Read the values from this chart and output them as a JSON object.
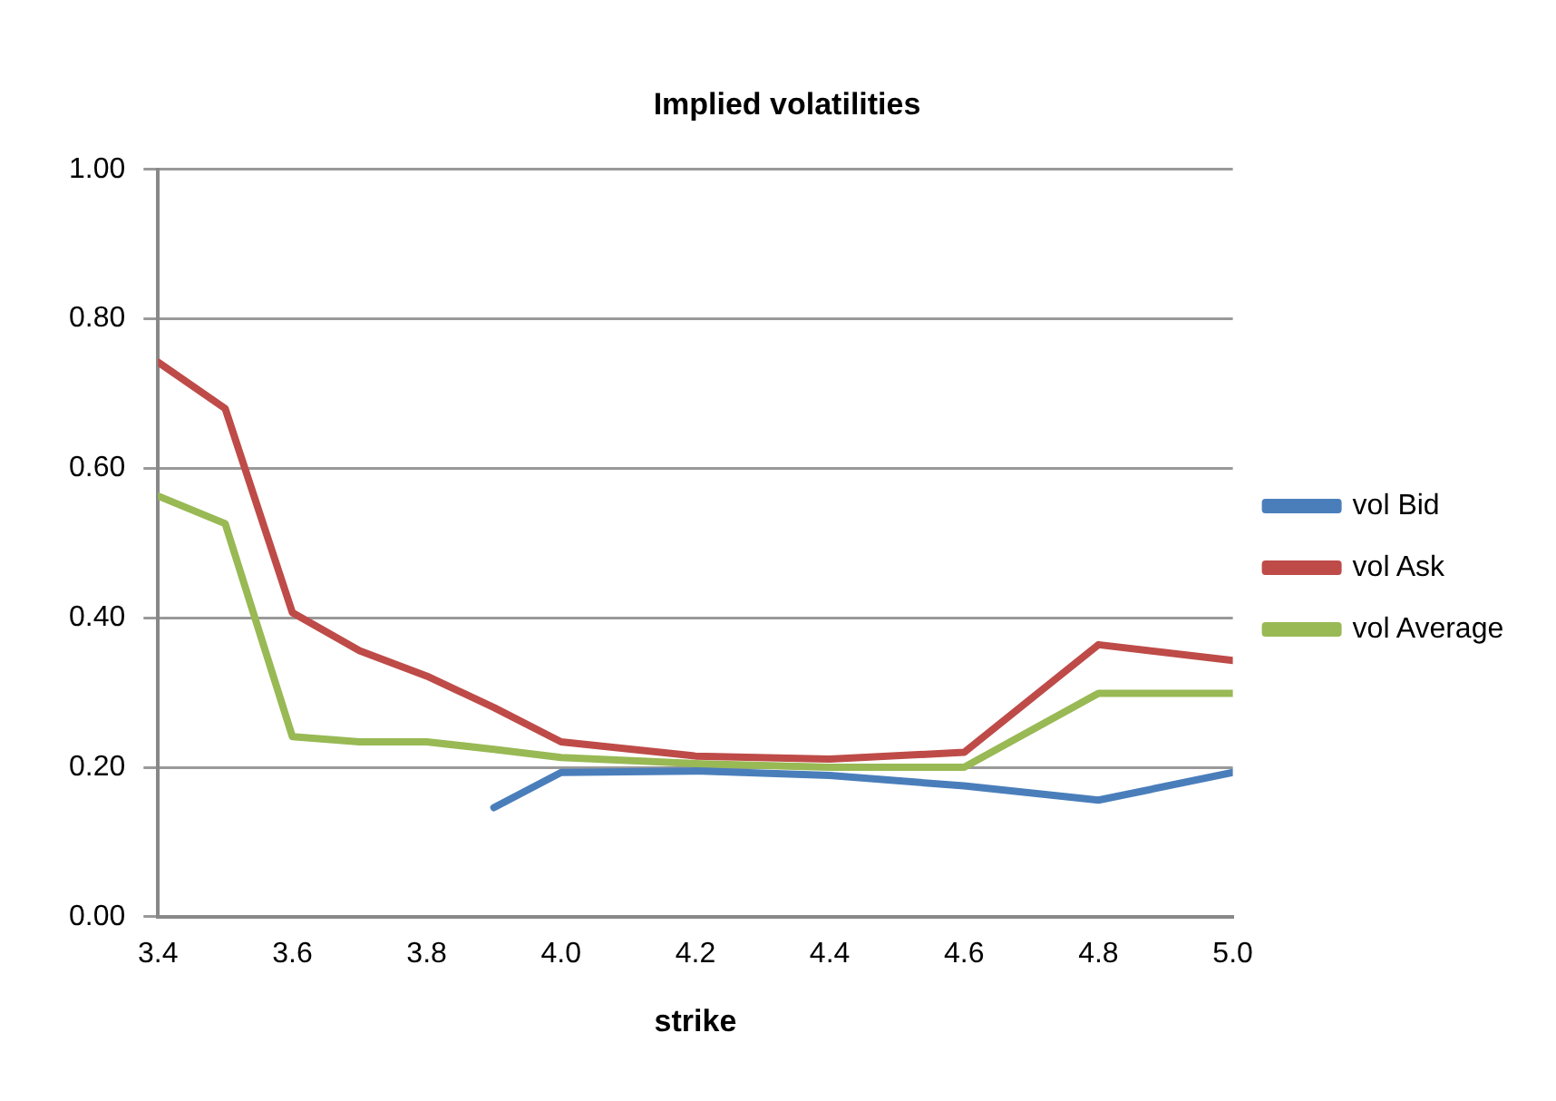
{
  "chart_data": {
    "type": "line",
    "title": "Implied volatilities",
    "xlabel": "strike",
    "x": [
      3.4,
      3.5,
      3.6,
      3.7,
      3.8,
      3.9,
      4.0,
      4.2,
      4.4,
      4.6,
      4.8,
      5.0
    ],
    "series": [
      {
        "name": "vol Bid",
        "color": "#4a7ebb",
        "values": [
          null,
          null,
          null,
          null,
          null,
          0.146,
          0.193,
          0.195,
          0.189,
          0.175,
          0.156,
          0.193
        ]
      },
      {
        "name": "vol Ask",
        "color": "#be4b48",
        "values": [
          0.742,
          0.68,
          0.407,
          0.356,
          0.322,
          0.28,
          0.234,
          0.215,
          0.211,
          0.22,
          0.364,
          0.343
        ]
      },
      {
        "name": "vol Average",
        "color": "#98b954",
        "values": [
          0.563,
          0.526,
          0.241,
          0.234,
          0.234,
          0.224,
          0.213,
          0.205,
          0.2,
          0.2,
          0.299,
          0.299
        ]
      }
    ],
    "xlim": [
      3.4,
      5.0
    ],
    "xticks": [
      {
        "value": 3.4,
        "label": "3.4"
      },
      {
        "value": 3.6,
        "label": "3.6"
      },
      {
        "value": 3.8,
        "label": "3.8"
      },
      {
        "value": 4.0,
        "label": "4.0"
      },
      {
        "value": 4.2,
        "label": "4.2"
      },
      {
        "value": 4.4,
        "label": "4.4"
      },
      {
        "value": 4.6,
        "label": "4.6"
      },
      {
        "value": 4.8,
        "label": "4.8"
      },
      {
        "value": 5.0,
        "label": "5.0"
      }
    ],
    "ylim": [
      0,
      1
    ],
    "yticks": [
      {
        "value": 0,
        "label": "0.00"
      },
      {
        "value": 0.2,
        "label": "0.20"
      },
      {
        "value": 0.4,
        "label": "0.40"
      },
      {
        "value": 0.6,
        "label": "0.60"
      },
      {
        "value": 0.8,
        "label": "0.80"
      },
      {
        "value": 1,
        "label": "1.00"
      }
    ],
    "grid": "y",
    "legend": "right",
    "marker": "none",
    "line_style": "solid"
  }
}
